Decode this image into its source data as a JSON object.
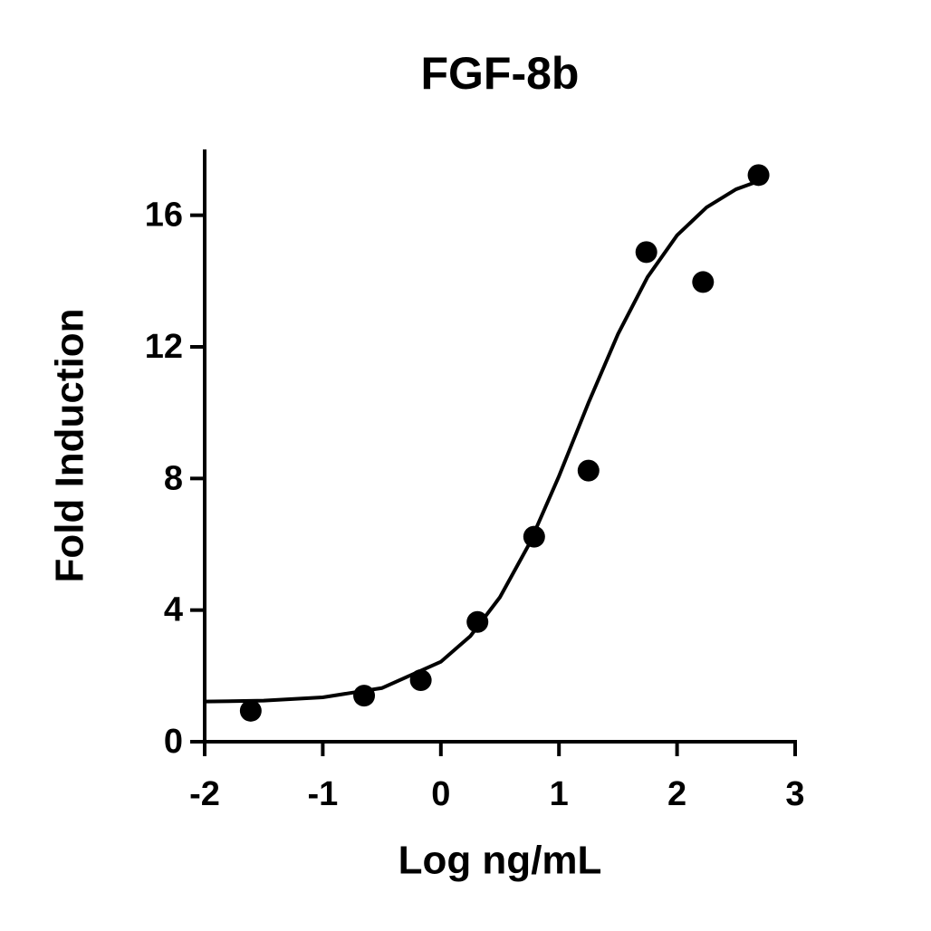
{
  "chart_data": {
    "type": "scatter",
    "title": "FGF-8b",
    "x_label": "Log ng/mL",
    "y_label": "Fold Induction",
    "points": {
      "x": [
        -1.61,
        -0.65,
        -0.17,
        0.31,
        0.79,
        1.25,
        1.74,
        2.22,
        2.69
      ],
      "values": [
        0.94,
        1.4,
        1.87,
        3.64,
        6.23,
        8.24,
        14.88,
        13.97,
        17.22
      ]
    },
    "fit_curve": {
      "x": [
        -2,
        -1.5,
        -1,
        -0.5,
        0,
        0.25,
        0.5,
        0.75,
        1,
        1.25,
        1.5,
        1.75,
        2,
        2.25,
        2.5,
        2.7
      ],
      "values": [
        1.22,
        1.25,
        1.35,
        1.63,
        2.43,
        3.21,
        4.39,
        6.02,
        8.07,
        10.3,
        12.39,
        14.12,
        15.39,
        16.24,
        16.79,
        17.05
      ]
    },
    "color": "#000000",
    "xlim": [
      -2,
      3
    ],
    "xticks": [
      -2,
      -1,
      0,
      1,
      2,
      3
    ],
    "ylim": [
      0,
      18
    ],
    "yticks": [
      0,
      4,
      8,
      12,
      16
    ],
    "grid": false
  }
}
